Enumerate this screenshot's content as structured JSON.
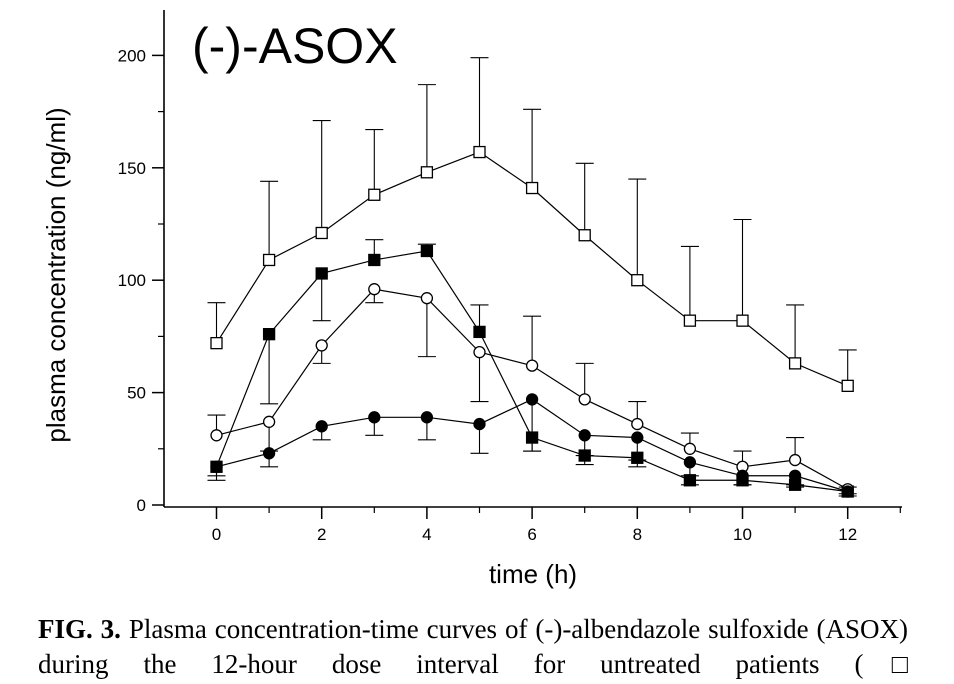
{
  "chart_data": {
    "type": "line",
    "title": "(-)-ASOX",
    "xlabel": "time (h)",
    "ylabel": "plasma concentration (ng/ml)",
    "xlim": [
      -1,
      13
    ],
    "ylim": [
      0,
      220
    ],
    "x_ticks": [
      "0",
      "2",
      "4",
      "6",
      "8",
      "10",
      "12"
    ],
    "y_ticks": [
      "0",
      "50",
      "100",
      "150",
      "200"
    ],
    "grid": false,
    "x": [
      0,
      1,
      2,
      3,
      4,
      5,
      6,
      7,
      8,
      9,
      10,
      11,
      12
    ],
    "series": [
      {
        "marker": "open-square",
        "values": [
          72,
          109,
          121,
          138,
          148,
          157,
          141,
          120,
          100,
          82,
          82,
          63,
          53
        ],
        "error_upper": [
          90,
          144,
          171,
          167,
          187,
          199,
          176,
          152,
          145,
          115,
          127,
          89,
          69
        ]
      },
      {
        "marker": "filled-square",
        "values": [
          17,
          76,
          103,
          109,
          113,
          77,
          30,
          22,
          21,
          11,
          11,
          9,
          6
        ],
        "error_upper": [
          13,
          45,
          82,
          118,
          116,
          89,
          24,
          18,
          17,
          9,
          9,
          8,
          5
        ]
      },
      {
        "marker": "open-circle",
        "values": [
          31,
          37,
          71,
          96,
          92,
          68,
          62,
          47,
          36,
          25,
          17,
          20,
          7
        ],
        "error_upper": [
          40,
          24,
          63,
          90,
          66,
          46,
          84,
          63,
          46,
          32,
          24,
          30,
          8
        ]
      },
      {
        "marker": "filled-circle",
        "values": [
          17,
          23,
          35,
          39,
          39,
          36,
          47,
          31,
          30,
          19,
          13,
          13,
          6
        ],
        "error_upper": [
          11,
          17,
          29,
          31,
          29,
          23,
          24,
          22,
          20,
          13,
          9,
          9,
          4
        ]
      }
    ]
  },
  "caption": {
    "label": "FIG. 3.",
    "text": "Plasma concentration-time curves of (-)-albendazole sulfoxide (ASOX) during the 12-hour dose interval for untreated patients (□"
  }
}
